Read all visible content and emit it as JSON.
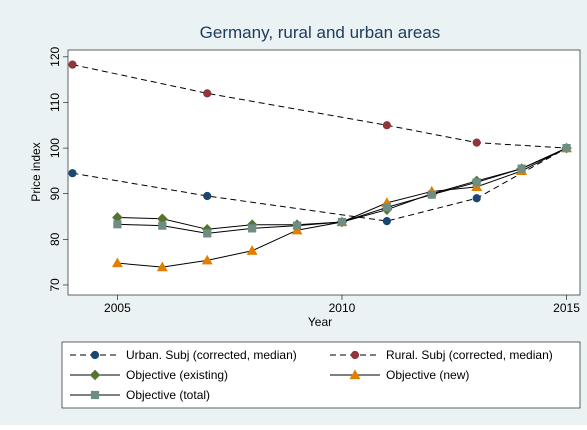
{
  "chart_data": {
    "type": "line",
    "title": "Germany, rural and urban areas",
    "x_label": "Year",
    "y_label": "Price index",
    "xlim": [
      2003.9,
      2015.3
    ],
    "xticks": [
      2005,
      2010,
      2015
    ],
    "ylim": [
      67.8,
      121.5
    ],
    "yticks": [
      70,
      80,
      90,
      100,
      110,
      120
    ],
    "grid": false,
    "series": [
      {
        "name": "Urban. Subj (corrected, median)",
        "color": "#1a476f",
        "marker": "circle",
        "dash": "dashed",
        "x": [
          2004,
          2007,
          2011,
          2013,
          2015
        ],
        "values": [
          94.5,
          89.5,
          84,
          89,
          100
        ]
      },
      {
        "name": "Rural. Subj (corrected, median)",
        "color": "#90353b",
        "marker": "circle",
        "dash": "dashed",
        "x": [
          2004,
          2007,
          2011,
          2013,
          2015
        ],
        "values": [
          118.3,
          112,
          105,
          101.2,
          100
        ]
      },
      {
        "name": "Objective (existing)",
        "color": "#55752f",
        "marker": "diamond",
        "dash": "solid",
        "x": [
          2005,
          2006,
          2007,
          2008,
          2009,
          2010,
          2011,
          2012,
          2013,
          2014,
          2015
        ],
        "values": [
          84.8,
          84.5,
          82.2,
          83.2,
          83.2,
          83.8,
          86.5,
          90,
          92.8,
          95.5,
          100
        ]
      },
      {
        "name": "Objective (new)",
        "color": "#e37e00",
        "marker": "triangle",
        "dash": "solid",
        "x": [
          2005,
          2006,
          2007,
          2008,
          2009,
          2010,
          2011,
          2012,
          2013,
          2014,
          2015
        ],
        "values": [
          74.8,
          73.9,
          75.4,
          77.5,
          82,
          83.8,
          88,
          90.5,
          91.5,
          95,
          100
        ]
      },
      {
        "name": "Objective (total)",
        "color": "#6e8e84",
        "marker": "square",
        "dash": "solid",
        "x": [
          2005,
          2006,
          2007,
          2008,
          2009,
          2010,
          2011,
          2012,
          2013,
          2014,
          2015
        ],
        "values": [
          83.3,
          83,
          81.3,
          82.4,
          83,
          83.8,
          87,
          89.8,
          92.5,
          95.5,
          100
        ]
      }
    ]
  }
}
